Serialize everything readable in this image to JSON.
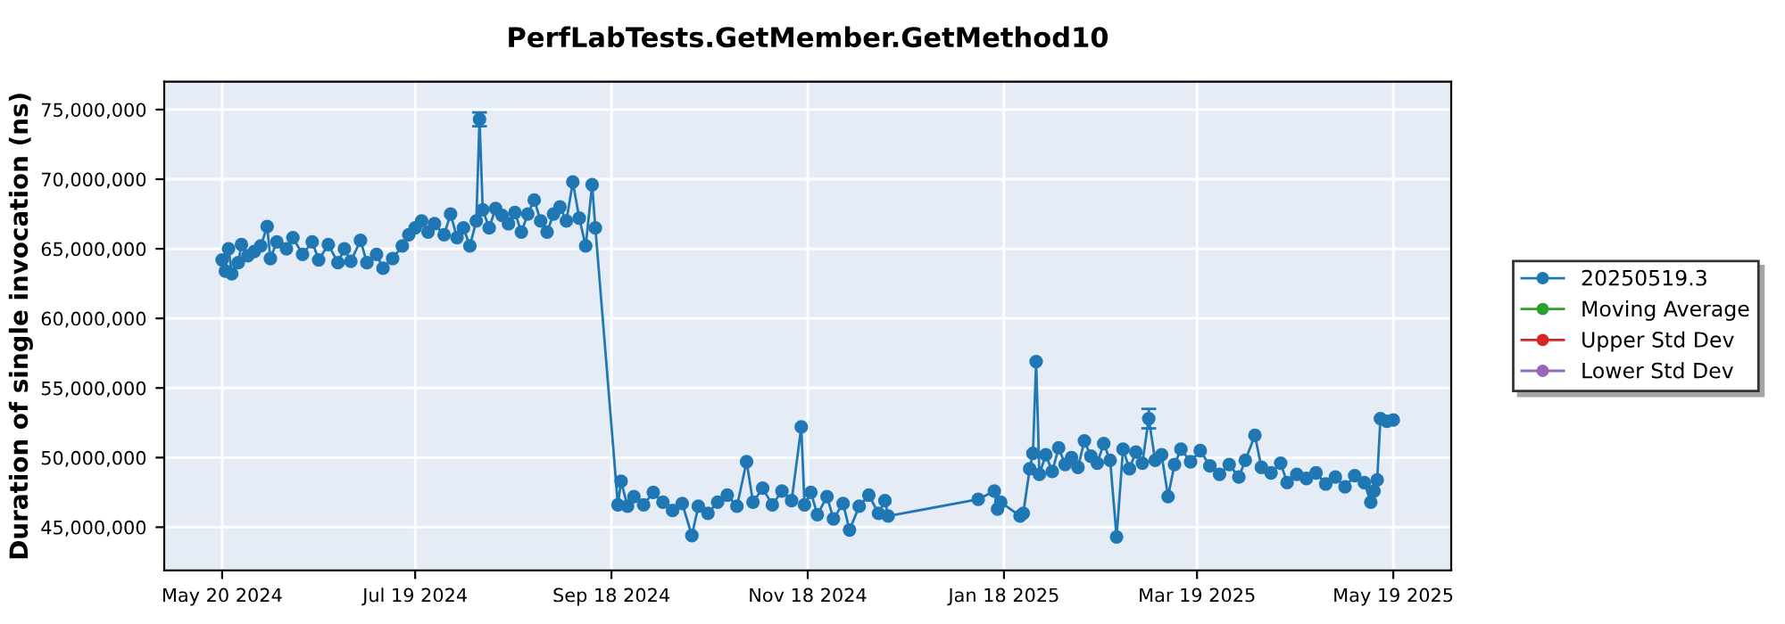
{
  "chart_data": {
    "type": "line",
    "title": "PerfLabTests.GetMember.GetMethod10",
    "ylabel": "Duration of single invocation (ns)",
    "x": [
      "2024-05-20",
      "2024-05-21",
      "2024-05-22",
      "2024-05-23",
      "2024-05-25",
      "2024-05-26",
      "2024-05-28",
      "2024-05-30",
      "2024-06-01",
      "2024-06-03",
      "2024-06-04",
      "2024-06-06",
      "2024-06-09",
      "2024-06-11",
      "2024-06-14",
      "2024-06-17",
      "2024-06-19",
      "2024-06-22",
      "2024-06-25",
      "2024-06-27",
      "2024-06-29",
      "2024-07-02",
      "2024-07-04",
      "2024-07-07",
      "2024-07-09",
      "2024-07-12",
      "2024-07-15",
      "2024-07-17",
      "2024-07-19",
      "2024-07-21",
      "2024-07-23",
      "2024-07-25",
      "2024-07-28",
      "2024-07-30",
      "2024-08-01",
      "2024-08-03",
      "2024-08-05",
      "2024-08-07",
      "2024-08-08",
      "2024-08-09",
      "2024-08-11",
      "2024-08-13",
      "2024-08-15",
      "2024-08-17",
      "2024-08-19",
      "2024-08-21",
      "2024-08-23",
      "2024-08-25",
      "2024-08-27",
      "2024-08-29",
      "2024-08-31",
      "2024-09-02",
      "2024-09-04",
      "2024-09-06",
      "2024-09-08",
      "2024-09-10",
      "2024-09-12",
      "2024-09-13",
      "2024-09-20",
      "2024-09-21",
      "2024-09-23",
      "2024-09-25",
      "2024-09-28",
      "2024-10-01",
      "2024-10-04",
      "2024-10-07",
      "2024-10-10",
      "2024-10-13",
      "2024-10-15",
      "2024-10-18",
      "2024-10-21",
      "2024-10-24",
      "2024-10-27",
      "2024-10-30",
      "2024-11-01",
      "2024-11-04",
      "2024-11-07",
      "2024-11-10",
      "2024-11-13",
      "2024-11-16",
      "2024-11-17",
      "2024-11-19",
      "2024-11-21",
      "2024-11-24",
      "2024-11-26",
      "2024-11-29",
      "2024-12-01",
      "2024-12-04",
      "2024-12-07",
      "2024-12-10",
      "2024-12-12",
      "2024-12-13",
      "2025-01-10",
      "2025-01-15",
      "2025-01-16",
      "2025-01-17",
      "2025-01-23",
      "2025-01-24",
      "2025-01-26",
      "2025-01-27",
      "2025-01-28",
      "2025-01-29",
      "2025-01-31",
      "2025-02-02",
      "2025-02-04",
      "2025-02-06",
      "2025-02-08",
      "2025-02-10",
      "2025-02-12",
      "2025-02-14",
      "2025-02-16",
      "2025-02-18",
      "2025-02-20",
      "2025-02-22",
      "2025-02-24",
      "2025-02-26",
      "2025-02-28",
      "2025-03-02",
      "2025-03-04",
      "2025-03-06",
      "2025-03-08",
      "2025-03-10",
      "2025-03-12",
      "2025-03-14",
      "2025-03-17",
      "2025-03-20",
      "2025-03-23",
      "2025-03-26",
      "2025-03-29",
      "2025-04-01",
      "2025-04-03",
      "2025-04-06",
      "2025-04-08",
      "2025-04-11",
      "2025-04-14",
      "2025-04-16",
      "2025-04-19",
      "2025-04-22",
      "2025-04-25",
      "2025-04-28",
      "2025-05-01",
      "2025-05-04",
      "2025-05-07",
      "2025-05-10",
      "2025-05-12",
      "2025-05-13",
      "2025-05-14",
      "2025-05-15",
      "2025-05-17",
      "2025-05-19"
    ],
    "series": [
      {
        "name": "20250519.3",
        "color": "#1f77b4",
        "values": [
          64200000,
          63400000,
          65000000,
          63200000,
          64000000,
          65300000,
          64500000,
          64800000,
          65200000,
          66600000,
          64300000,
          65500000,
          65000000,
          65800000,
          64600000,
          65500000,
          64200000,
          65300000,
          64000000,
          65000000,
          64100000,
          65600000,
          64000000,
          64600000,
          63600000,
          64300000,
          65200000,
          66000000,
          66500000,
          67000000,
          66200000,
          66800000,
          66000000,
          67500000,
          65800000,
          66500000,
          65200000,
          67000000,
          74300000,
          67800000,
          66500000,
          67900000,
          67400000,
          66800000,
          67600000,
          66200000,
          67500000,
          68500000,
          67000000,
          66200000,
          67500000,
          68000000,
          67000000,
          69800000,
          67200000,
          65200000,
          69600000,
          66500000,
          46600000,
          48300000,
          46500000,
          47200000,
          46600000,
          47500000,
          46800000,
          46200000,
          46700000,
          44400000,
          46500000,
          46000000,
          46800000,
          47300000,
          46500000,
          49700000,
          46800000,
          47800000,
          46600000,
          47600000,
          46900000,
          52200000,
          46600000,
          47500000,
          45900000,
          47200000,
          45600000,
          46700000,
          44800000,
          46500000,
          47300000,
          46000000,
          46900000,
          45800000,
          47000000,
          47600000,
          46300000,
          46800000,
          45800000,
          46000000,
          49200000,
          50300000,
          56900000,
          48800000,
          50200000,
          49000000,
          50700000,
          49500000,
          50000000,
          49300000,
          51200000,
          50100000,
          49600000,
          51000000,
          49800000,
          44300000,
          50600000,
          49200000,
          50400000,
          49600000,
          52800000,
          49800000,
          50200000,
          47200000,
          49500000,
          50600000,
          49700000,
          50500000,
          49400000,
          48800000,
          49500000,
          48600000,
          49800000,
          51600000,
          49300000,
          48900000,
          49600000,
          48200000,
          48800000,
          48500000,
          48900000,
          48100000,
          48600000,
          47900000,
          48700000,
          48200000,
          46800000,
          47600000,
          48400000,
          52800000,
          52600000,
          52700000
        ],
        "errors": [
          null,
          null,
          null,
          null,
          null,
          null,
          null,
          null,
          null,
          null,
          null,
          null,
          null,
          null,
          null,
          null,
          null,
          null,
          null,
          null,
          null,
          null,
          null,
          null,
          null,
          null,
          null,
          null,
          null,
          null,
          null,
          null,
          null,
          null,
          null,
          null,
          null,
          null,
          500000,
          null,
          null,
          null,
          null,
          null,
          null,
          null,
          null,
          null,
          null,
          null,
          null,
          null,
          null,
          null,
          null,
          null,
          null,
          null,
          null,
          null,
          null,
          null,
          null,
          null,
          null,
          null,
          null,
          null,
          null,
          null,
          null,
          null,
          null,
          null,
          null,
          null,
          null,
          null,
          null,
          null,
          null,
          null,
          null,
          null,
          null,
          null,
          null,
          null,
          null,
          null,
          null,
          null,
          null,
          null,
          null,
          null,
          null,
          null,
          null,
          null,
          null,
          null,
          null,
          null,
          null,
          null,
          null,
          null,
          null,
          null,
          null,
          null,
          null,
          null,
          null,
          null,
          null,
          null,
          700000,
          null,
          null,
          null,
          null,
          null,
          null,
          null,
          null,
          null,
          null,
          null,
          null,
          null,
          null,
          null,
          null,
          null,
          null,
          null,
          null,
          null,
          null,
          null,
          null,
          null,
          null,
          null,
          null,
          null,
          null,
          null
        ]
      },
      {
        "name": "Moving Average",
        "color": "#2ca02c",
        "values": [
          null,
          null,
          null,
          null,
          null,
          null,
          null,
          null,
          null,
          null,
          null,
          null,
          null,
          null,
          null,
          null,
          null,
          null,
          null,
          null,
          null,
          null,
          null,
          null,
          null,
          null,
          null,
          null,
          null,
          null,
          null,
          null,
          null,
          null,
          null,
          null,
          null,
          null,
          null,
          null,
          null,
          null,
          null,
          null,
          null,
          null,
          null,
          null,
          null,
          null,
          null,
          null,
          null,
          null,
          null,
          null,
          null,
          null,
          null,
          null,
          null,
          null,
          null,
          null,
          null,
          null,
          null,
          null,
          null,
          null,
          null,
          null,
          null,
          null,
          null,
          null,
          null,
          null,
          null,
          null,
          null,
          null,
          null,
          null,
          null,
          null,
          null,
          null,
          null,
          null,
          null,
          null,
          null,
          null,
          null,
          null,
          null,
          null,
          null,
          null,
          null,
          null,
          null,
          null,
          null,
          null,
          null,
          null,
          null,
          null,
          null,
          null,
          null,
          null,
          null,
          null,
          null,
          null,
          null,
          null,
          null,
          null,
          null,
          null,
          null,
          null,
          null,
          null,
          null,
          null,
          null,
          null,
          null,
          null,
          null,
          null,
          null,
          null,
          null,
          null,
          null,
          null,
          null,
          null,
          null,
          null,
          null,
          null,
          null,
          null
        ]
      },
      {
        "name": "Upper Std Dev",
        "color": "#d62728",
        "values": [
          null,
          null,
          null,
          null,
          null,
          null,
          null,
          null,
          null,
          null,
          null,
          null,
          null,
          null,
          null,
          null,
          null,
          null,
          null,
          null,
          null,
          null,
          null,
          null,
          null,
          null,
          null,
          null,
          null,
          null,
          null,
          null,
          null,
          null,
          null,
          null,
          null,
          null,
          null,
          null,
          null,
          null,
          null,
          null,
          null,
          null,
          null,
          null,
          null,
          null,
          null,
          null,
          null,
          null,
          null,
          null,
          null,
          null,
          null,
          null,
          null,
          null,
          null,
          null,
          null,
          null,
          null,
          null,
          null,
          null,
          null,
          null,
          null,
          null,
          null,
          null,
          null,
          null,
          null,
          null,
          null,
          null,
          null,
          null,
          null,
          null,
          null,
          null,
          null,
          null,
          null,
          null,
          null,
          null,
          null,
          null,
          null,
          null,
          null,
          null,
          null,
          null,
          null,
          null,
          null,
          null,
          null,
          null,
          null,
          null,
          null,
          null,
          null,
          null,
          null,
          null,
          null,
          null,
          null,
          null,
          null,
          null,
          null,
          null,
          null,
          null,
          null,
          null,
          null,
          null,
          null,
          null,
          null,
          null,
          null,
          null,
          null,
          null,
          null,
          null,
          null,
          null,
          null,
          null,
          null,
          null,
          null,
          null,
          null,
          null
        ]
      },
      {
        "name": "Lower Std Dev",
        "color": "#9467bd",
        "values": [
          null,
          null,
          null,
          null,
          null,
          null,
          null,
          null,
          null,
          null,
          null,
          null,
          null,
          null,
          null,
          null,
          null,
          null,
          null,
          null,
          null,
          null,
          null,
          null,
          null,
          null,
          null,
          null,
          null,
          null,
          null,
          null,
          null,
          null,
          null,
          null,
          null,
          null,
          null,
          null,
          null,
          null,
          null,
          null,
          null,
          null,
          null,
          null,
          null,
          null,
          null,
          null,
          null,
          null,
          null,
          null,
          null,
          null,
          null,
          null,
          null,
          null,
          null,
          null,
          null,
          null,
          null,
          null,
          null,
          null,
          null,
          null,
          null,
          null,
          null,
          null,
          null,
          null,
          null,
          null,
          null,
          null,
          null,
          null,
          null,
          null,
          null,
          null,
          null,
          null,
          null,
          null,
          null,
          null,
          null,
          null,
          null,
          null,
          null,
          null,
          null,
          null,
          null,
          null,
          null,
          null,
          null,
          null,
          null,
          null,
          null,
          null,
          null,
          null,
          null,
          null,
          null,
          null,
          null,
          null,
          null,
          null,
          null,
          null,
          null,
          null,
          null,
          null,
          null,
          null,
          null,
          null,
          null,
          null,
          null,
          null,
          null,
          null,
          null,
          null,
          null,
          null,
          null,
          null,
          null,
          null,
          null,
          null,
          null,
          null
        ]
      }
    ],
    "xlim": [
      "2024-05-02",
      "2025-06-06"
    ],
    "xticks": [
      {
        "value": "2024-05-20",
        "label": "May 20 2024"
      },
      {
        "value": "2024-07-19",
        "label": "Jul 19 2024"
      },
      {
        "value": "2024-09-18",
        "label": "Sep 18 2024"
      },
      {
        "value": "2024-11-18",
        "label": "Nov 18 2024"
      },
      {
        "value": "2025-01-18",
        "label": "Jan 18 2025"
      },
      {
        "value": "2025-03-19",
        "label": "Mar 19 2025"
      },
      {
        "value": "2025-05-19",
        "label": "May 19 2025"
      }
    ],
    "ylim": [
      41900000,
      77000000
    ],
    "yticks": [
      {
        "value": 45000000,
        "label": "45,000,000"
      },
      {
        "value": 50000000,
        "label": "50,000,000"
      },
      {
        "value": 55000000,
        "label": "55,000,000"
      },
      {
        "value": 60000000,
        "label": "60,000,000"
      },
      {
        "value": 65000000,
        "label": "65,000,000"
      },
      {
        "value": 70000000,
        "label": "70,000,000"
      },
      {
        "value": 75000000,
        "label": "75,000,000"
      }
    ],
    "grid": true,
    "legend": "right",
    "marker": "circle",
    "line_style": "solid"
  }
}
